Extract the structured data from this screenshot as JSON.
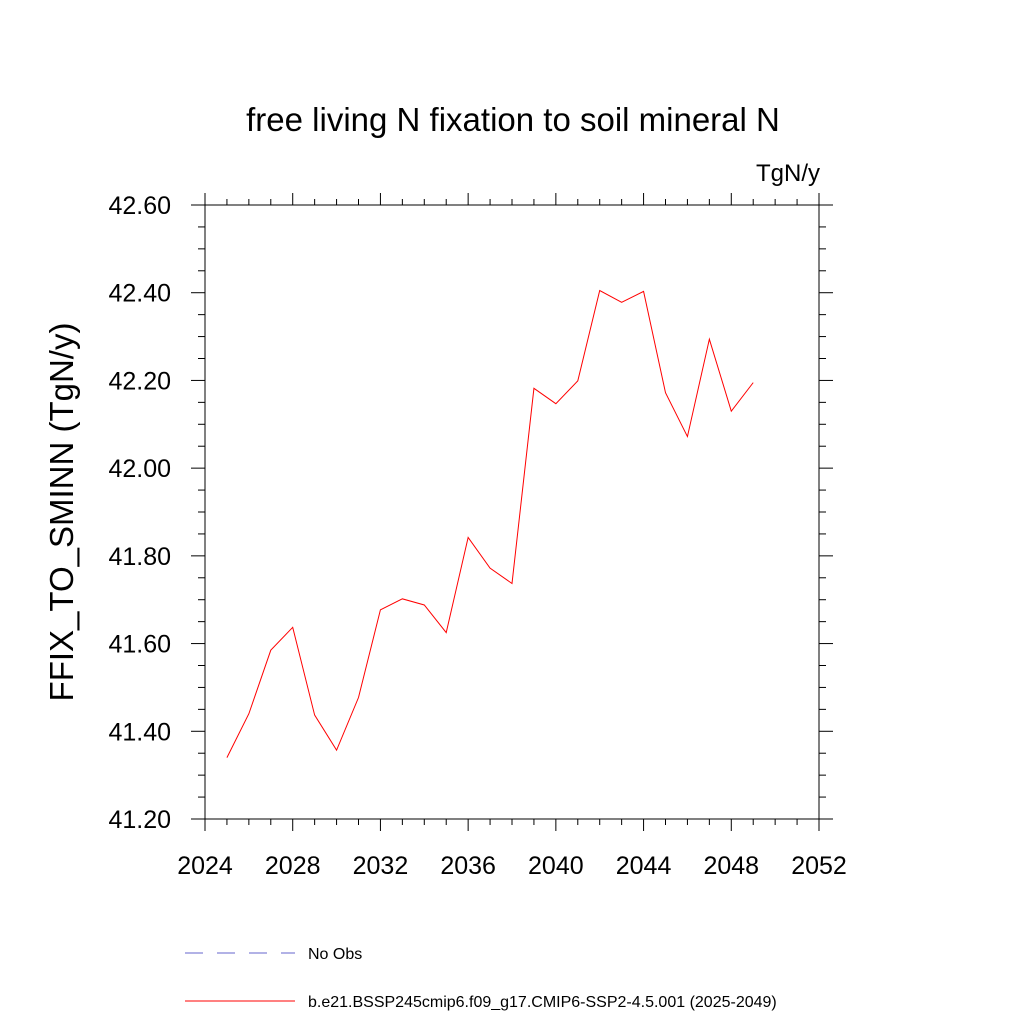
{
  "chart_data": {
    "type": "line",
    "title": "free living N fixation to soil mineral N",
    "units": "TgN/y",
    "ylabel": "FFIX_TO_SMINN  (TgN/y)",
    "xlabel": "",
    "xlim": [
      2024,
      2052
    ],
    "ylim": [
      41.2,
      42.6
    ],
    "xticks": [
      2024,
      2028,
      2032,
      2036,
      2040,
      2044,
      2048,
      2052
    ],
    "xtick_labels": [
      "2024",
      "2028",
      "2032",
      "2036",
      "2040",
      "2044",
      "2048",
      "2052"
    ],
    "yticks": [
      41.2,
      41.4,
      41.6,
      41.8,
      42.0,
      42.2,
      42.4,
      42.6
    ],
    "ytick_labels": [
      "41.20",
      "41.40",
      "41.60",
      "41.80",
      "42.00",
      "42.20",
      "42.40",
      "42.60"
    ],
    "series": [
      {
        "name": "b.e21.BSSP245cmip6.f09_g17.CMIP6-SSP2-4.5.001 (2025-2049)",
        "color": "#ff0000",
        "style": "solid",
        "x": [
          2025,
          2026,
          2027,
          2028,
          2029,
          2030,
          2031,
          2032,
          2033,
          2034,
          2035,
          2036,
          2037,
          2038,
          2039,
          2040,
          2041,
          2042,
          2043,
          2044,
          2045,
          2046,
          2047,
          2048,
          2049
        ],
        "values": [
          41.34,
          41.44,
          41.585,
          41.637,
          41.437,
          41.357,
          41.477,
          41.677,
          41.702,
          41.688,
          41.625,
          41.842,
          41.772,
          41.737,
          42.182,
          42.147,
          42.199,
          42.405,
          42.378,
          42.403,
          42.172,
          42.072,
          42.294,
          42.13,
          42.195
        ]
      }
    ],
    "legend": [
      {
        "label": "No Obs",
        "color": "#6666cc",
        "style": "dashed"
      },
      {
        "label": "b.e21.BSSP245cmip6.f09_g17.CMIP6-SSP2-4.5.001 (2025-2049)",
        "color": "#ff0000",
        "style": "solid"
      }
    ],
    "legend_position": "bottom"
  }
}
